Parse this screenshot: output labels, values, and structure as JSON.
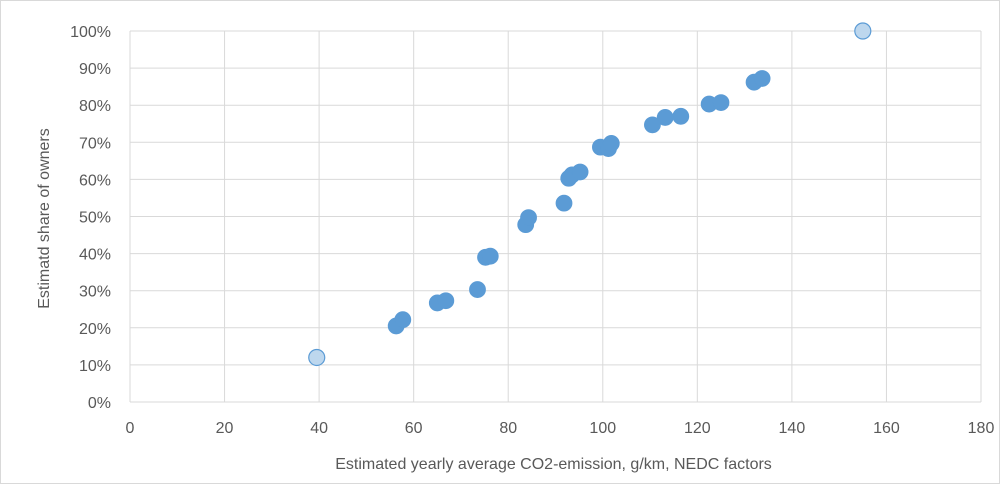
{
  "chart_data": {
    "type": "scatter",
    "title": "",
    "xlabel": "Estimated yearly average CO2-emission, g/km, NEDC factors",
    "ylabel": "Estimatd share of owners",
    "xlim": [
      0,
      180
    ],
    "ylim": [
      0,
      1
    ],
    "x_ticks": [
      0,
      20,
      40,
      60,
      80,
      100,
      120,
      140,
      160,
      180
    ],
    "x_tick_labels": [
      "0",
      "20",
      "40",
      "60",
      "80",
      "100",
      "120",
      "140",
      "160",
      "180"
    ],
    "y_ticks": [
      0,
      0.1,
      0.2,
      0.3,
      0.4,
      0.5,
      0.6,
      0.7,
      0.8,
      0.9,
      1.0
    ],
    "y_tick_labels": [
      "0%",
      "10%",
      "20%",
      "30%",
      "40%",
      "50%",
      "60%",
      "70%",
      "80%",
      "90%",
      "100%"
    ],
    "grid": true,
    "legend": "none",
    "colors": {
      "main": "#5b9bd5",
      "highlight": "#bdd7ee",
      "highlight_edge": "#5b9bd5"
    },
    "series": [
      {
        "points": [
          [
            56.3,
            0.205
          ],
          [
            57.7,
            0.222
          ],
          [
            65.0,
            0.267
          ],
          [
            66.8,
            0.273
          ],
          [
            73.5,
            0.303
          ],
          [
            75.2,
            0.39
          ],
          [
            76.2,
            0.393
          ],
          [
            83.7,
            0.478
          ],
          [
            84.3,
            0.497
          ],
          [
            91.8,
            0.536
          ],
          [
            92.8,
            0.603
          ],
          [
            93.5,
            0.612
          ],
          [
            95.2,
            0.62
          ],
          [
            99.5,
            0.687
          ],
          [
            101.2,
            0.683
          ],
          [
            101.8,
            0.697
          ],
          [
            110.5,
            0.747
          ],
          [
            113.2,
            0.767
          ],
          [
            116.5,
            0.77
          ],
          [
            122.5,
            0.803
          ],
          [
            125.0,
            0.807
          ],
          [
            132.0,
            0.862
          ],
          [
            133.7,
            0.872
          ]
        ]
      },
      {
        "points": [
          [
            39.5,
            0.12
          ],
          [
            155.0,
            1.0
          ]
        ]
      }
    ]
  }
}
